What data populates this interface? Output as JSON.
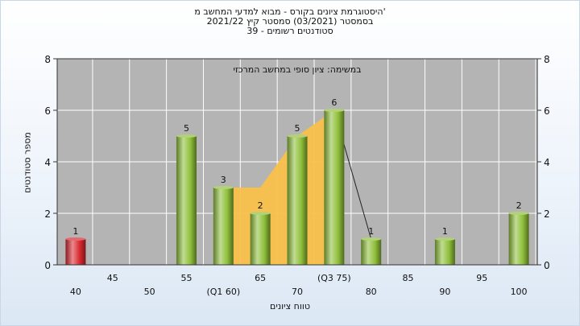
{
  "header": {
    "title_line1": "היסטוגרמת ציונים בקורס - מבוא למדעי המחשב מ'",
    "title_line2": "בסמסטר  (03/2021)  סמסטר קיץ  2021/22",
    "title_line3": "סטודנטים רשומים - 39"
  },
  "chart_data": {
    "type": "bar",
    "title": "היסטוגרמת ציונים בקורס - מבוא למדעי המחשב מ'",
    "subtitle": "במשימה: ציון סופי במחשב המרכזי",
    "xlabel": "טווח ציונים",
    "ylabel": "מספר סטודנטים",
    "x_ticks": [
      "40",
      "45",
      "50",
      "55",
      "(Q1 60)",
      "65",
      "70",
      "(Q3 75)",
      "80",
      "85",
      "90",
      "95",
      "100"
    ],
    "y_ticks": [
      "0",
      "2",
      "4",
      "6",
      "8"
    ],
    "ylim": [
      0,
      8
    ],
    "grid": true,
    "bars": [
      {
        "x": 40,
        "value": 1,
        "label": "1",
        "color": "#d8292f"
      },
      {
        "x": 55,
        "value": 5,
        "label": "5",
        "color": "#8fbf3a"
      },
      {
        "x": 60,
        "value": 3,
        "label": "3",
        "color": "#8fbf3a"
      },
      {
        "x": 65,
        "value": 2,
        "label": "2",
        "color": "#8fbf3a"
      },
      {
        "x": 70,
        "value": 5,
        "label": "5",
        "color": "#8fbf3a"
      },
      {
        "x": 75,
        "value": 6,
        "label": "6",
        "color": "#8fbf3a"
      },
      {
        "x": 80,
        "value": 1,
        "label": "1",
        "color": "#8fbf3a"
      },
      {
        "x": 90,
        "value": 1,
        "label": "1",
        "color": "#8fbf3a"
      },
      {
        "x": 100,
        "value": 2,
        "label": "2",
        "color": "#8fbf3a"
      }
    ],
    "iqr_area": {
      "color": "#f9c14a",
      "points": [
        {
          "x": 60,
          "y": 3
        },
        {
          "x": 65,
          "y": 3
        },
        {
          "x": 70,
          "y": 5
        },
        {
          "x": 75,
          "y": 6
        }
      ]
    },
    "trend_line": {
      "from": {
        "x": 75,
        "y": 6
      },
      "to": {
        "x": 80,
        "y": 1
      }
    },
    "colors": {
      "plot_bg": "#b4b4b4",
      "grid": "#ffffff",
      "axis": "#333333"
    }
  }
}
